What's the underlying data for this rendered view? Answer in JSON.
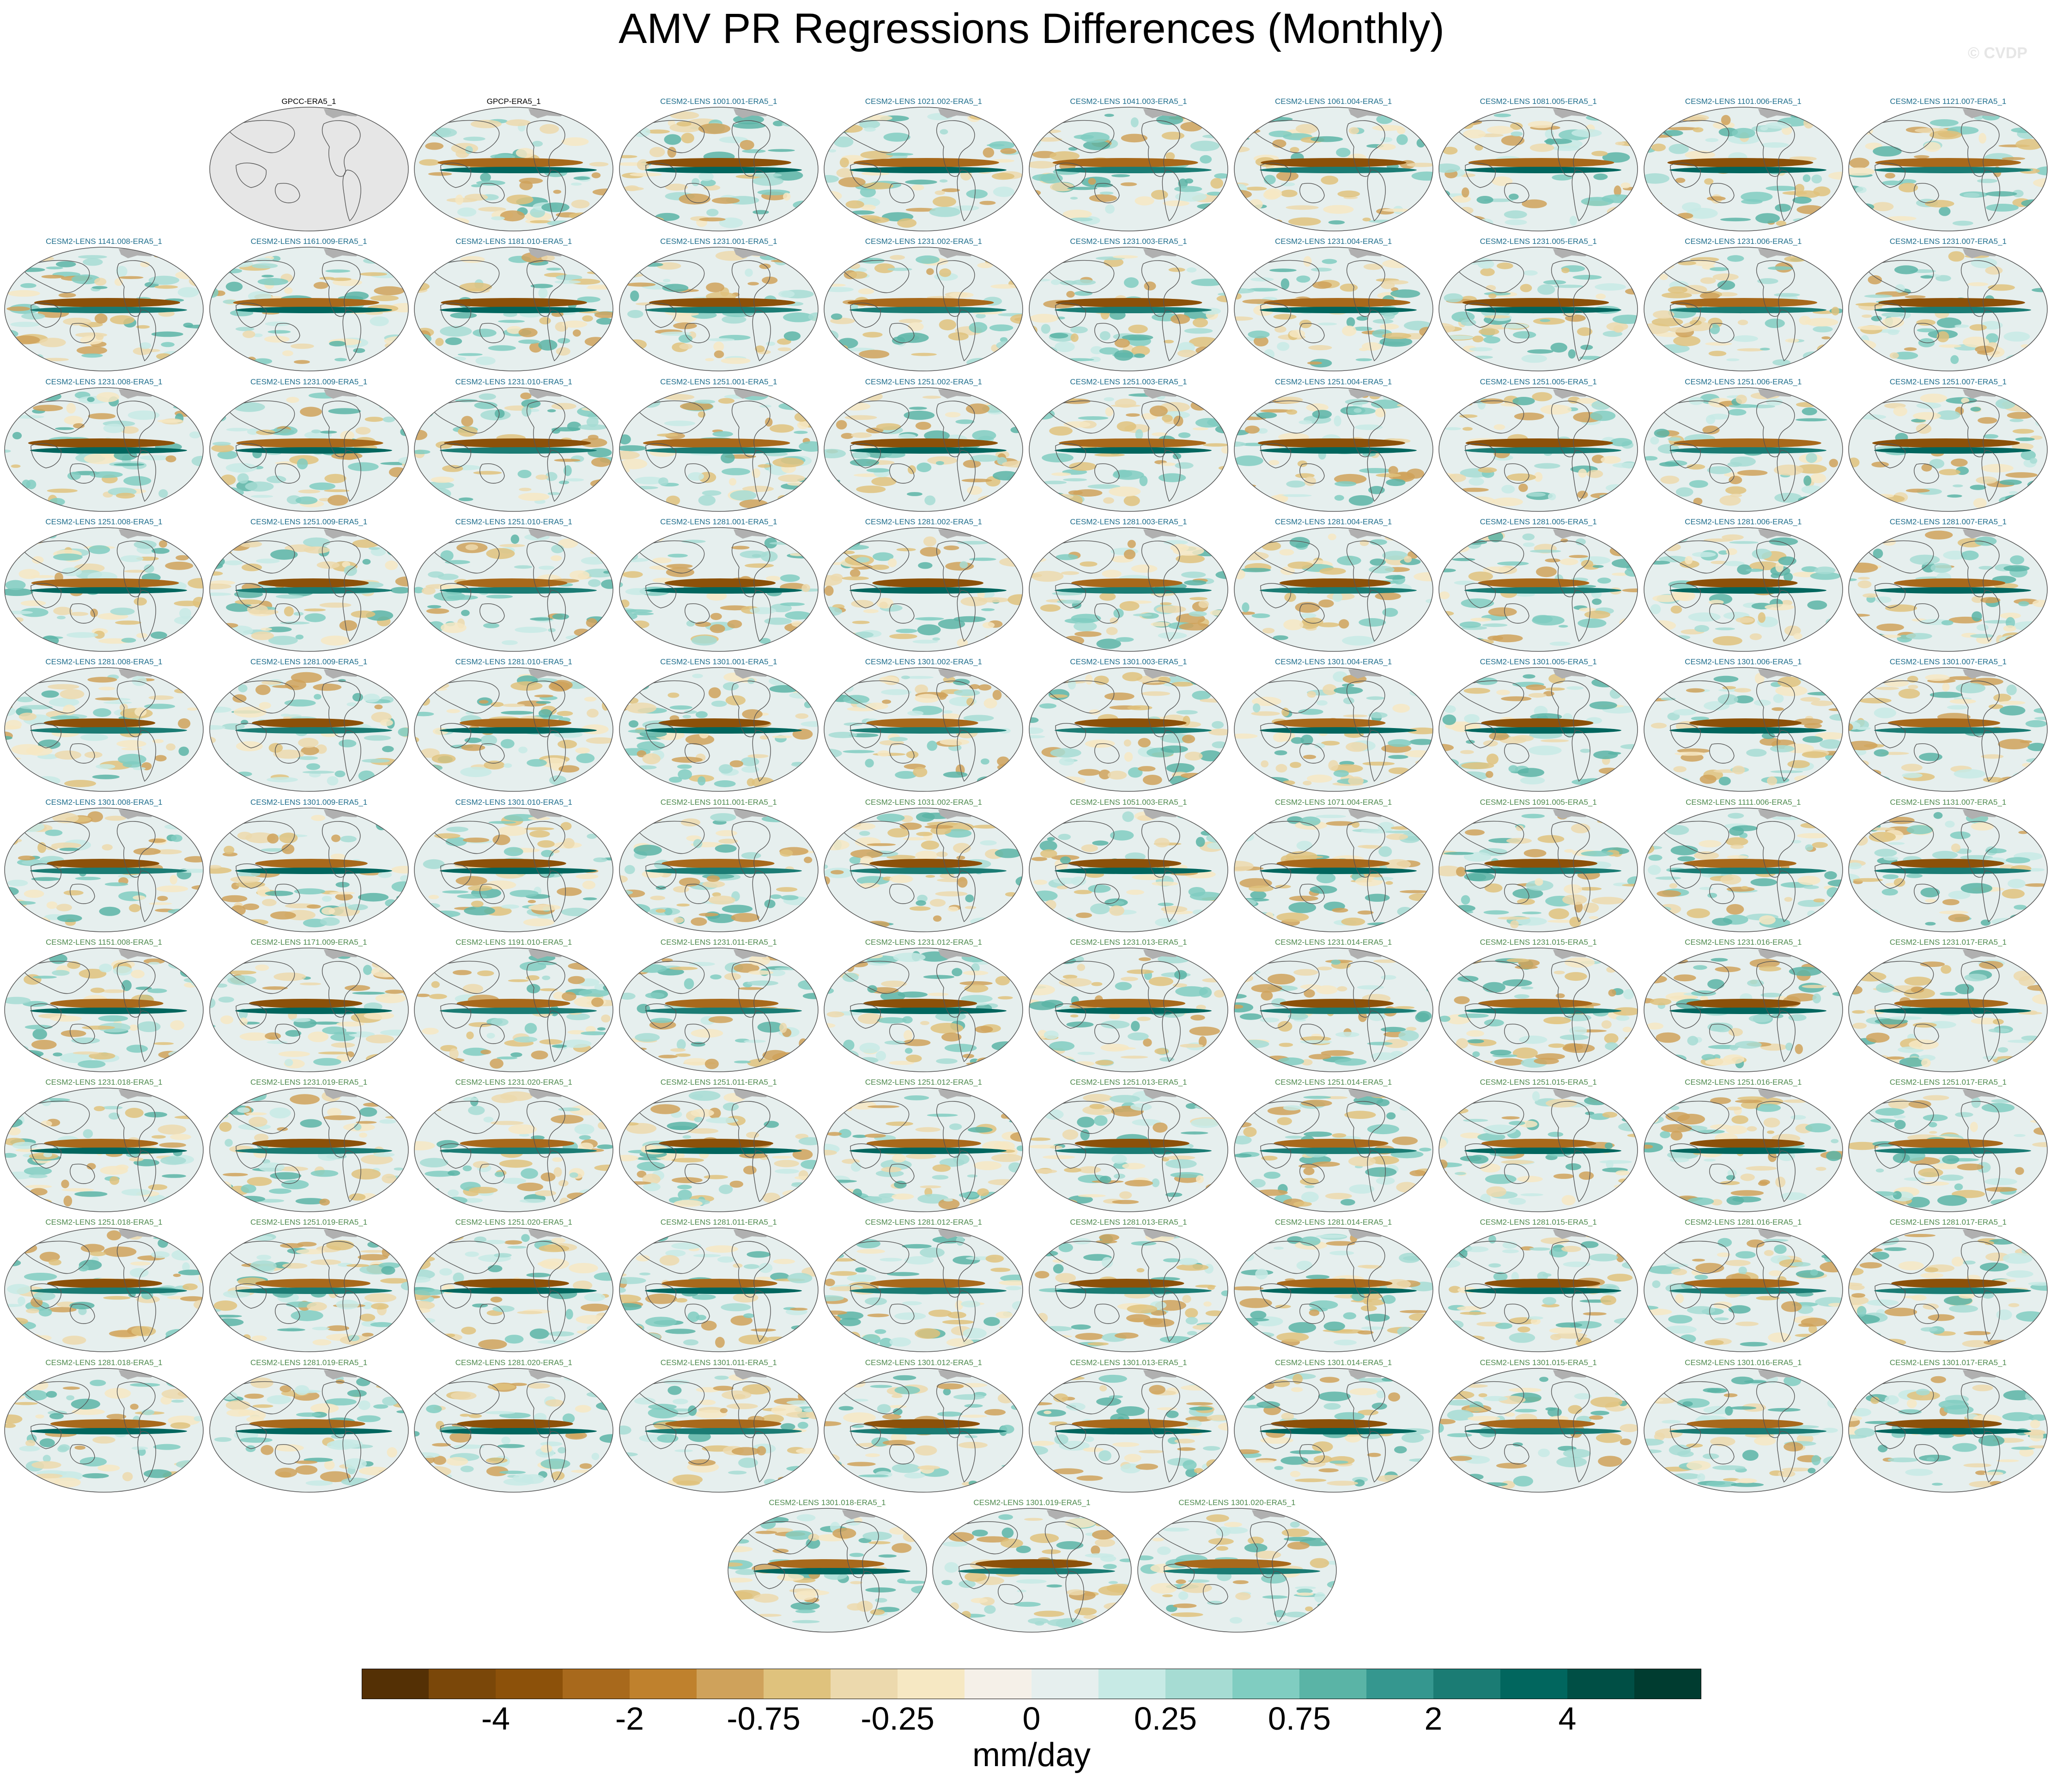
{
  "header": {
    "title": "AMV PR Regressions Differences (Monthly)",
    "watermark": "© CVDP"
  },
  "panels": [
    {
      "label": "GPCC-ERA5_1",
      "group": "obs",
      "map": "blank"
    },
    {
      "label": "GPCP-ERA5_1",
      "group": "obs",
      "map": "field"
    },
    {
      "label": "CESM2-LENS 1001.001-ERA5_1",
      "group": "a",
      "map": "field"
    },
    {
      "label": "CESM2-LENS 1021.002-ERA5_1",
      "group": "a",
      "map": "field"
    },
    {
      "label": "CESM2-LENS 1041.003-ERA5_1",
      "group": "a",
      "map": "field"
    },
    {
      "label": "CESM2-LENS 1061.004-ERA5_1",
      "group": "a",
      "map": "field"
    },
    {
      "label": "CESM2-LENS 1081.005-ERA5_1",
      "group": "a",
      "map": "field"
    },
    {
      "label": "CESM2-LENS 1101.006-ERA5_1",
      "group": "a",
      "map": "field"
    },
    {
      "label": "CESM2-LENS 1121.007-ERA5_1",
      "group": "a",
      "map": "field"
    },
    {
      "label": "CESM2-LENS 1141.008-ERA5_1",
      "group": "a",
      "map": "field"
    },
    {
      "label": "CESM2-LENS 1161.009-ERA5_1",
      "group": "a",
      "map": "field"
    },
    {
      "label": "CESM2-LENS 1181.010-ERA5_1",
      "group": "a",
      "map": "field"
    },
    {
      "label": "CESM2-LENS 1231.001-ERA5_1",
      "group": "a",
      "map": "field"
    },
    {
      "label": "CESM2-LENS 1231.002-ERA5_1",
      "group": "a",
      "map": "field"
    },
    {
      "label": "CESM2-LENS 1231.003-ERA5_1",
      "group": "a",
      "map": "field"
    },
    {
      "label": "CESM2-LENS 1231.004-ERA5_1",
      "group": "a",
      "map": "field"
    },
    {
      "label": "CESM2-LENS 1231.005-ERA5_1",
      "group": "a",
      "map": "field"
    },
    {
      "label": "CESM2-LENS 1231.006-ERA5_1",
      "group": "a",
      "map": "field"
    },
    {
      "label": "CESM2-LENS 1231.007-ERA5_1",
      "group": "a",
      "map": "field"
    },
    {
      "label": "CESM2-LENS 1231.008-ERA5_1",
      "group": "a",
      "map": "field"
    },
    {
      "label": "CESM2-LENS 1231.009-ERA5_1",
      "group": "a",
      "map": "field"
    },
    {
      "label": "CESM2-LENS 1231.010-ERA5_1",
      "group": "a",
      "map": "field"
    },
    {
      "label": "CESM2-LENS 1251.001-ERA5_1",
      "group": "a",
      "map": "field"
    },
    {
      "label": "CESM2-LENS 1251.002-ERA5_1",
      "group": "a",
      "map": "field"
    },
    {
      "label": "CESM2-LENS 1251.003-ERA5_1",
      "group": "a",
      "map": "field"
    },
    {
      "label": "CESM2-LENS 1251.004-ERA5_1",
      "group": "a",
      "map": "field"
    },
    {
      "label": "CESM2-LENS 1251.005-ERA5_1",
      "group": "a",
      "map": "field"
    },
    {
      "label": "CESM2-LENS 1251.006-ERA5_1",
      "group": "a",
      "map": "field"
    },
    {
      "label": "CESM2-LENS 1251.007-ERA5_1",
      "group": "a",
      "map": "field"
    },
    {
      "label": "CESM2-LENS 1251.008-ERA5_1",
      "group": "a",
      "map": "field"
    },
    {
      "label": "CESM2-LENS 1251.009-ERA5_1",
      "group": "a",
      "map": "field"
    },
    {
      "label": "CESM2-LENS 1251.010-ERA5_1",
      "group": "a",
      "map": "field"
    },
    {
      "label": "CESM2-LENS 1281.001-ERA5_1",
      "group": "a",
      "map": "field"
    },
    {
      "label": "CESM2-LENS 1281.002-ERA5_1",
      "group": "a",
      "map": "field"
    },
    {
      "label": "CESM2-LENS 1281.003-ERA5_1",
      "group": "a",
      "map": "field"
    },
    {
      "label": "CESM2-LENS 1281.004-ERA5_1",
      "group": "a",
      "map": "field"
    },
    {
      "label": "CESM2-LENS 1281.005-ERA5_1",
      "group": "a",
      "map": "field"
    },
    {
      "label": "CESM2-LENS 1281.006-ERA5_1",
      "group": "a",
      "map": "field"
    },
    {
      "label": "CESM2-LENS 1281.007-ERA5_1",
      "group": "a",
      "map": "field"
    },
    {
      "label": "CESM2-LENS 1281.008-ERA5_1",
      "group": "a",
      "map": "field"
    },
    {
      "label": "CESM2-LENS 1281.009-ERA5_1",
      "group": "a",
      "map": "field"
    },
    {
      "label": "CESM2-LENS 1281.010-ERA5_1",
      "group": "a",
      "map": "field"
    },
    {
      "label": "CESM2-LENS 1301.001-ERA5_1",
      "group": "a",
      "map": "field"
    },
    {
      "label": "CESM2-LENS 1301.002-ERA5_1",
      "group": "a",
      "map": "field"
    },
    {
      "label": "CESM2-LENS 1301.003-ERA5_1",
      "group": "a",
      "map": "field"
    },
    {
      "label": "CESM2-LENS 1301.004-ERA5_1",
      "group": "a",
      "map": "field"
    },
    {
      "label": "CESM2-LENS 1301.005-ERA5_1",
      "group": "a",
      "map": "field"
    },
    {
      "label": "CESM2-LENS 1301.006-ERA5_1",
      "group": "a",
      "map": "field"
    },
    {
      "label": "CESM2-LENS 1301.007-ERA5_1",
      "group": "a",
      "map": "field"
    },
    {
      "label": "CESM2-LENS 1301.008-ERA5_1",
      "group": "a",
      "map": "field"
    },
    {
      "label": "CESM2-LENS 1301.009-ERA5_1",
      "group": "a",
      "map": "field"
    },
    {
      "label": "CESM2-LENS 1301.010-ERA5_1",
      "group": "a",
      "map": "field"
    },
    {
      "label": "CESM2-LENS 1011.001-ERA5_1",
      "group": "b",
      "map": "field"
    },
    {
      "label": "CESM2-LENS 1031.002-ERA5_1",
      "group": "b",
      "map": "field"
    },
    {
      "label": "CESM2-LENS 1051.003-ERA5_1",
      "group": "b",
      "map": "field"
    },
    {
      "label": "CESM2-LENS 1071.004-ERA5_1",
      "group": "b",
      "map": "field"
    },
    {
      "label": "CESM2-LENS 1091.005-ERA5_1",
      "group": "b",
      "map": "field"
    },
    {
      "label": "CESM2-LENS 1111.006-ERA5_1",
      "group": "b",
      "map": "field"
    },
    {
      "label": "CESM2-LENS 1131.007-ERA5_1",
      "group": "b",
      "map": "field"
    },
    {
      "label": "CESM2-LENS 1151.008-ERA5_1",
      "group": "b",
      "map": "field"
    },
    {
      "label": "CESM2-LENS 1171.009-ERA5_1",
      "group": "b",
      "map": "field"
    },
    {
      "label": "CESM2-LENS 1191.010-ERA5_1",
      "group": "b",
      "map": "field"
    },
    {
      "label": "CESM2-LENS 1231.011-ERA5_1",
      "group": "b",
      "map": "field"
    },
    {
      "label": "CESM2-LENS 1231.012-ERA5_1",
      "group": "b",
      "map": "field"
    },
    {
      "label": "CESM2-LENS 1231.013-ERA5_1",
      "group": "b",
      "map": "field"
    },
    {
      "label": "CESM2-LENS 1231.014-ERA5_1",
      "group": "b",
      "map": "field"
    },
    {
      "label": "CESM2-LENS 1231.015-ERA5_1",
      "group": "b",
      "map": "field"
    },
    {
      "label": "CESM2-LENS 1231.016-ERA5_1",
      "group": "b",
      "map": "field"
    },
    {
      "label": "CESM2-LENS 1231.017-ERA5_1",
      "group": "b",
      "map": "field"
    },
    {
      "label": "CESM2-LENS 1231.018-ERA5_1",
      "group": "b",
      "map": "field"
    },
    {
      "label": "CESM2-LENS 1231.019-ERA5_1",
      "group": "b",
      "map": "field"
    },
    {
      "label": "CESM2-LENS 1231.020-ERA5_1",
      "group": "b",
      "map": "field"
    },
    {
      "label": "CESM2-LENS 1251.011-ERA5_1",
      "group": "b",
      "map": "field"
    },
    {
      "label": "CESM2-LENS 1251.012-ERA5_1",
      "group": "b",
      "map": "field"
    },
    {
      "label": "CESM2-LENS 1251.013-ERA5_1",
      "group": "b",
      "map": "field"
    },
    {
      "label": "CESM2-LENS 1251.014-ERA5_1",
      "group": "b",
      "map": "field"
    },
    {
      "label": "CESM2-LENS 1251.015-ERA5_1",
      "group": "b",
      "map": "field"
    },
    {
      "label": "CESM2-LENS 1251.016-ERA5_1",
      "group": "b",
      "map": "field"
    },
    {
      "label": "CESM2-LENS 1251.017-ERA5_1",
      "group": "b",
      "map": "field"
    },
    {
      "label": "CESM2-LENS 1251.018-ERA5_1",
      "group": "b",
      "map": "field"
    },
    {
      "label": "CESM2-LENS 1251.019-ERA5_1",
      "group": "b",
      "map": "field"
    },
    {
      "label": "CESM2-LENS 1251.020-ERA5_1",
      "group": "b",
      "map": "field"
    },
    {
      "label": "CESM2-LENS 1281.011-ERA5_1",
      "group": "b",
      "map": "field"
    },
    {
      "label": "CESM2-LENS 1281.012-ERA5_1",
      "group": "b",
      "map": "field"
    },
    {
      "label": "CESM2-LENS 1281.013-ERA5_1",
      "group": "b",
      "map": "field"
    },
    {
      "label": "CESM2-LENS 1281.014-ERA5_1",
      "group": "b",
      "map": "field"
    },
    {
      "label": "CESM2-LENS 1281.015-ERA5_1",
      "group": "b",
      "map": "field"
    },
    {
      "label": "CESM2-LENS 1281.016-ERA5_1",
      "group": "b",
      "map": "field"
    },
    {
      "label": "CESM2-LENS 1281.017-ERA5_1",
      "group": "b",
      "map": "field"
    },
    {
      "label": "CESM2-LENS 1281.018-ERA5_1",
      "group": "b",
      "map": "field"
    },
    {
      "label": "CESM2-LENS 1281.019-ERA5_1",
      "group": "b",
      "map": "field"
    },
    {
      "label": "CESM2-LENS 1281.020-ERA5_1",
      "group": "b",
      "map": "field"
    },
    {
      "label": "CESM2-LENS 1301.011-ERA5_1",
      "group": "b",
      "map": "field"
    },
    {
      "label": "CESM2-LENS 1301.012-ERA5_1",
      "group": "b",
      "map": "field"
    },
    {
      "label": "CESM2-LENS 1301.013-ERA5_1",
      "group": "b",
      "map": "field"
    },
    {
      "label": "CESM2-LENS 1301.014-ERA5_1",
      "group": "b",
      "map": "field"
    },
    {
      "label": "CESM2-LENS 1301.015-ERA5_1",
      "group": "b",
      "map": "field"
    },
    {
      "label": "CESM2-LENS 1301.016-ERA5_1",
      "group": "b",
      "map": "field"
    },
    {
      "label": "CESM2-LENS 1301.017-ERA5_1",
      "group": "b",
      "map": "field"
    },
    {
      "label": "CESM2-LENS 1301.018-ERA5_1",
      "group": "b",
      "map": "field"
    },
    {
      "label": "CESM2-LENS 1301.019-ERA5_1",
      "group": "b",
      "map": "field"
    },
    {
      "label": "CESM2-LENS 1301.020-ERA5_1",
      "group": "b",
      "map": "field"
    }
  ],
  "colorbar": {
    "units": "mm/day",
    "colors": [
      "#543005",
      "#7a4709",
      "#8c510a",
      "#a8691c",
      "#bf812d",
      "#cfa25b",
      "#dfc27d",
      "#ecd9ad",
      "#f6e8c3",
      "#f5f0e8",
      "#e6efee",
      "#c7eae5",
      "#a6dcd3",
      "#80cdc1",
      "#5ab4a6",
      "#35978f",
      "#1b7c74",
      "#01665e",
      "#004f45",
      "#003c30"
    ],
    "tick_labels": [
      {
        "label": "-4",
        "boundary": 2
      },
      {
        "label": "-2",
        "boundary": 4
      },
      {
        "label": "-0.75",
        "boundary": 6
      },
      {
        "label": "-0.25",
        "boundary": 8
      },
      {
        "label": "0",
        "boundary": 10
      },
      {
        "label": "0.25",
        "boundary": 12
      },
      {
        "label": "0.75",
        "boundary": 14
      },
      {
        "label": "2",
        "boundary": 16
      },
      {
        "label": "4",
        "boundary": 18
      }
    ]
  },
  "colors": {
    "obs_label": "#000000",
    "members_a_label": "#1f6e8c",
    "members_b_label": "#4e8a4e",
    "land_outline": "#555555",
    "missing": "#e6e6e6",
    "arctic_land": "#b0b0b0"
  }
}
